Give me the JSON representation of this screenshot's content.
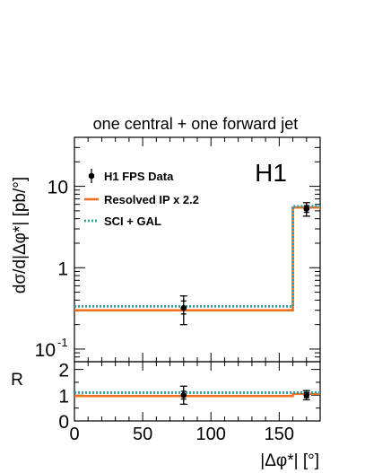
{
  "chart_data": {
    "type": "step",
    "title": "one central + one forward jet",
    "tag": "H1",
    "xlabel": "|Δφ*| [°]",
    "ylabel": "dσ/d|Δφ*| [pb/°]",
    "ratio_label": "R",
    "xlim": [
      0,
      180
    ],
    "ylim": [
      0.07,
      40
    ],
    "yscale": "log",
    "ratio_ylim": [
      0,
      2.3
    ],
    "x_ticks": [
      0,
      50,
      100,
      150
    ],
    "y_ticks": [
      {
        "value": 0.1,
        "label": "10",
        "exp": "-1"
      },
      {
        "value": 1,
        "label": "1"
      },
      {
        "value": 10,
        "label": "10"
      }
    ],
    "ratio_ticks": [
      0,
      1,
      2
    ],
    "legend_position": "top-left",
    "colors": {
      "data": "#000000",
      "resolved": "#f07020",
      "sci": "#2aa0a0"
    },
    "bins": [
      [
        0,
        160
      ],
      [
        160,
        180
      ]
    ],
    "series": [
      {
        "name": "H1 FPS Data",
        "style": "points",
        "x": [
          80,
          170
        ],
        "y": [
          0.32,
          5.3
        ],
        "err_stat": [
          [
            0.27,
            0.39
          ],
          [
            4.8,
            5.8
          ]
        ],
        "err_tot": [
          [
            0.2,
            0.45
          ],
          [
            4.3,
            6.3
          ]
        ]
      },
      {
        "name": "Resolved IP x 2.2",
        "style": "line",
        "color": "#f07020",
        "values": [
          0.3,
          5.5
        ]
      },
      {
        "name": "SCI + GAL",
        "style": "dotted",
        "color": "#2aa0a0",
        "values": [
          0.335,
          5.7
        ]
      }
    ],
    "ratio": {
      "data": {
        "x": [
          80,
          170
        ],
        "y": [
          1.0,
          1.0
        ],
        "err": [
          [
            0.65,
            1.35
          ],
          [
            0.82,
            1.18
          ]
        ],
        "err_stat": [
          [
            0.85,
            1.15
          ],
          [
            0.9,
            1.1
          ]
        ]
      },
      "resolved": [
        0.97,
        1.05
      ],
      "sci": [
        1.1,
        1.1
      ]
    }
  }
}
